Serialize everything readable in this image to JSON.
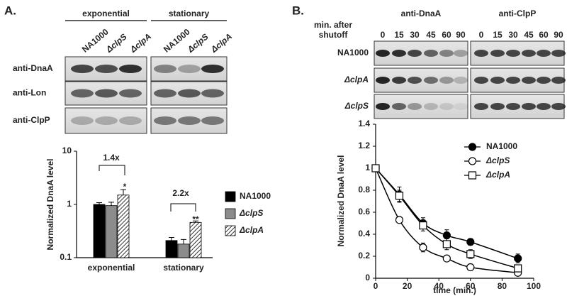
{
  "panel_a": {
    "label": "A.",
    "blot": {
      "groups": [
        "exponential",
        "stationary"
      ],
      "lanes": [
        "NA1000",
        "ΔclpS",
        "ΔclpA",
        "NA1000",
        "ΔclpS",
        "ΔclpA"
      ],
      "rows": [
        "anti-DnaA",
        "anti-Lon",
        "anti-ClpP"
      ]
    }
  },
  "panel_b": {
    "label": "B.",
    "blot": {
      "groups": [
        "anti-DnaA",
        "anti-ClpP"
      ],
      "time_label": [
        "min. after",
        "shutoff"
      ],
      "times": [
        "0",
        "15",
        "30",
        "45",
        "60",
        "90",
        "0",
        "15",
        "30",
        "45",
        "60",
        "90"
      ],
      "rows": [
        "NA1000",
        "ΔclpA",
        "ΔclpS"
      ]
    }
  },
  "chart_data": [
    {
      "type": "bar",
      "y_label": "Normalized DnaA level",
      "categories": [
        "exponential",
        "stationary"
      ],
      "log_scale": true,
      "ylim": [
        0.1,
        10
      ],
      "yticks": [
        0.1,
        1,
        10
      ],
      "series": [
        {
          "name": "NA1000",
          "color": "#000000",
          "values": [
            1.0,
            0.21
          ],
          "errors": [
            0.08,
            0.03
          ]
        },
        {
          "name": "ΔclpS",
          "color": "#8c8c8c",
          "values": [
            0.95,
            0.18
          ],
          "errors": [
            0.15,
            0.04
          ]
        },
        {
          "name": "ΔclpA",
          "color": "#ffffff",
          "hatch": true,
          "values": [
            1.5,
            0.46
          ],
          "errors": [
            0.4,
            0.03
          ]
        }
      ],
      "annotations": [
        "1.4x",
        "2.2x",
        "*",
        "**"
      ]
    },
    {
      "type": "line",
      "x_label": "time (min.)",
      "y_label": "Normalized DnaA level",
      "x": [
        0,
        15,
        30,
        45,
        60,
        90
      ],
      "xlim": [
        0,
        100
      ],
      "xticks": [
        0,
        20,
        40,
        60,
        80,
        100
      ],
      "ylim": [
        0,
        1.4
      ],
      "yticks": [
        0,
        0.2,
        0.4,
        0.6,
        0.8,
        1,
        1.2,
        1.4
      ],
      "legend": "upper right",
      "series": [
        {
          "name": "NA1000",
          "color": "#000000",
          "marker": "filled-circle",
          "values": [
            1,
            0.76,
            0.5,
            0.39,
            0.33,
            0.18
          ],
          "errors": [
            0,
            0.07,
            0.05,
            0.05,
            0.03,
            0.04
          ]
        },
        {
          "name": "ΔclpS",
          "color": "#000000",
          "marker": "open-circle",
          "values": [
            1,
            0.53,
            0.28,
            0.18,
            0.1,
            0.05
          ],
          "errors": [
            0,
            0.02,
            0.04,
            0.01,
            0.02,
            0.01
          ]
        },
        {
          "name": "ΔclpA",
          "color": "#000000",
          "marker": "open-square",
          "values": [
            1,
            0.75,
            0.48,
            0.31,
            0.22,
            0.09
          ],
          "errors": [
            0,
            0.05,
            0.05,
            0.05,
            0.04,
            0.03
          ]
        }
      ]
    }
  ]
}
